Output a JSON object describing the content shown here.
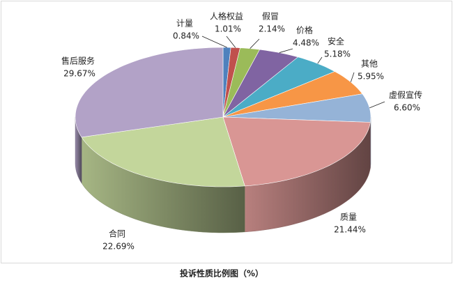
{
  "chart_data": {
    "type": "pie3d",
    "title": "投诉性质比例图（%）",
    "categories": [
      "计量",
      "人格权益",
      "假冒",
      "价格",
      "安全",
      "其他",
      "虚假宣传",
      "质量",
      "合同",
      "售后服务"
    ],
    "values": [
      0.84,
      1.01,
      2.14,
      4.48,
      5.18,
      5.95,
      6.6,
      21.44,
      22.69,
      29.67
    ],
    "value_labels": [
      "0.84%",
      "1.01%",
      "2.14%",
      "4.48%",
      "5.18%",
      "5.95%",
      "6.60%",
      "21.44%",
      "22.69%",
      "29.67%"
    ],
    "colors": [
      "#4f81bd",
      "#c0504d",
      "#9bbb59",
      "#8064a2",
      "#4bacc6",
      "#f79646",
      "#95b3d7",
      "#d99694",
      "#c3d69b",
      "#b2a2c7"
    ]
  }
}
